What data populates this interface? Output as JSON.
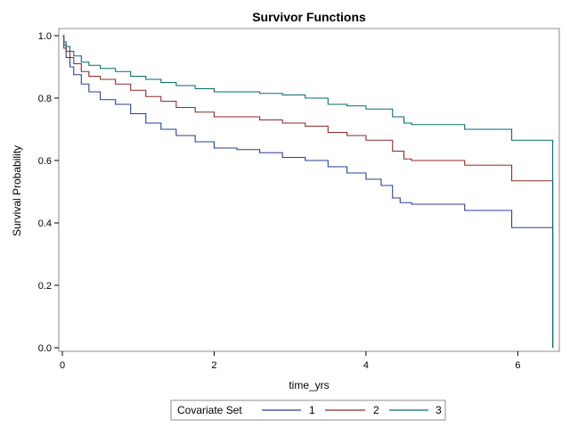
{
  "chart_data": {
    "type": "line",
    "title": "Survivor Functions",
    "xlabel": "time_yrs",
    "ylabel": "Survival Probability",
    "xlim": [
      0,
      6.5
    ],
    "ylim": [
      0,
      1.0
    ],
    "xticks": [
      "0",
      "2",
      "4",
      "6"
    ],
    "yticks": [
      "0.0",
      "0.2",
      "0.4",
      "0.6",
      "0.8",
      "1.0"
    ],
    "legend_title": "Covariate Set",
    "legend_position": "bottom",
    "step": true,
    "series": [
      {
        "name": "1",
        "color": "#2a3f8f",
        "points": [
          [
            0.0,
            1.0
          ],
          [
            0.02,
            0.96
          ],
          [
            0.05,
            0.93
          ],
          [
            0.1,
            0.9
          ],
          [
            0.15,
            0.875
          ],
          [
            0.25,
            0.845
          ],
          [
            0.35,
            0.82
          ],
          [
            0.5,
            0.795
          ],
          [
            0.7,
            0.78
          ],
          [
            0.9,
            0.75
          ],
          [
            1.1,
            0.72
          ],
          [
            1.3,
            0.7
          ],
          [
            1.5,
            0.68
          ],
          [
            1.75,
            0.66
          ],
          [
            2.0,
            0.64
          ],
          [
            2.3,
            0.635
          ],
          [
            2.6,
            0.625
          ],
          [
            2.9,
            0.61
          ],
          [
            3.2,
            0.6
          ],
          [
            3.5,
            0.58
          ],
          [
            3.75,
            0.56
          ],
          [
            4.0,
            0.54
          ],
          [
            4.2,
            0.52
          ],
          [
            4.35,
            0.48
          ],
          [
            4.45,
            0.465
          ],
          [
            4.6,
            0.46
          ],
          [
            5.0,
            0.46
          ],
          [
            5.3,
            0.44
          ],
          [
            5.9,
            0.44
          ],
          [
            5.92,
            0.385
          ],
          [
            6.45,
            0.385
          ],
          [
            6.46,
            0.0
          ]
        ]
      },
      {
        "name": "2",
        "color": "#8f2a2a",
        "points": [
          [
            0.0,
            1.0
          ],
          [
            0.02,
            0.97
          ],
          [
            0.05,
            0.95
          ],
          [
            0.1,
            0.93
          ],
          [
            0.15,
            0.91
          ],
          [
            0.25,
            0.885
          ],
          [
            0.35,
            0.87
          ],
          [
            0.5,
            0.86
          ],
          [
            0.7,
            0.845
          ],
          [
            0.9,
            0.825
          ],
          [
            1.1,
            0.805
          ],
          [
            1.3,
            0.79
          ],
          [
            1.5,
            0.77
          ],
          [
            1.75,
            0.755
          ],
          [
            2.0,
            0.74
          ],
          [
            2.3,
            0.74
          ],
          [
            2.6,
            0.73
          ],
          [
            2.9,
            0.72
          ],
          [
            3.2,
            0.71
          ],
          [
            3.5,
            0.69
          ],
          [
            3.75,
            0.68
          ],
          [
            4.0,
            0.665
          ],
          [
            4.2,
            0.665
          ],
          [
            4.35,
            0.63
          ],
          [
            4.5,
            0.605
          ],
          [
            4.6,
            0.6
          ],
          [
            5.0,
            0.6
          ],
          [
            5.3,
            0.585
          ],
          [
            5.9,
            0.585
          ],
          [
            5.92,
            0.535
          ],
          [
            6.45,
            0.535
          ],
          [
            6.46,
            0.0
          ]
        ]
      },
      {
        "name": "3",
        "color": "#0b6a6a",
        "points": [
          [
            0.0,
            1.0
          ],
          [
            0.02,
            0.98
          ],
          [
            0.05,
            0.965
          ],
          [
            0.1,
            0.95
          ],
          [
            0.15,
            0.935
          ],
          [
            0.25,
            0.915
          ],
          [
            0.35,
            0.905
          ],
          [
            0.5,
            0.895
          ],
          [
            0.7,
            0.885
          ],
          [
            0.9,
            0.87
          ],
          [
            1.1,
            0.86
          ],
          [
            1.3,
            0.85
          ],
          [
            1.5,
            0.84
          ],
          [
            1.75,
            0.83
          ],
          [
            2.0,
            0.82
          ],
          [
            2.3,
            0.82
          ],
          [
            2.6,
            0.815
          ],
          [
            2.9,
            0.81
          ],
          [
            3.2,
            0.8
          ],
          [
            3.5,
            0.78
          ],
          [
            3.75,
            0.775
          ],
          [
            4.0,
            0.765
          ],
          [
            4.2,
            0.765
          ],
          [
            4.35,
            0.74
          ],
          [
            4.5,
            0.72
          ],
          [
            4.6,
            0.715
          ],
          [
            5.0,
            0.715
          ],
          [
            5.3,
            0.7
          ],
          [
            5.9,
            0.7
          ],
          [
            5.92,
            0.665
          ],
          [
            6.45,
            0.665
          ],
          [
            6.46,
            0.0
          ]
        ]
      }
    ]
  }
}
